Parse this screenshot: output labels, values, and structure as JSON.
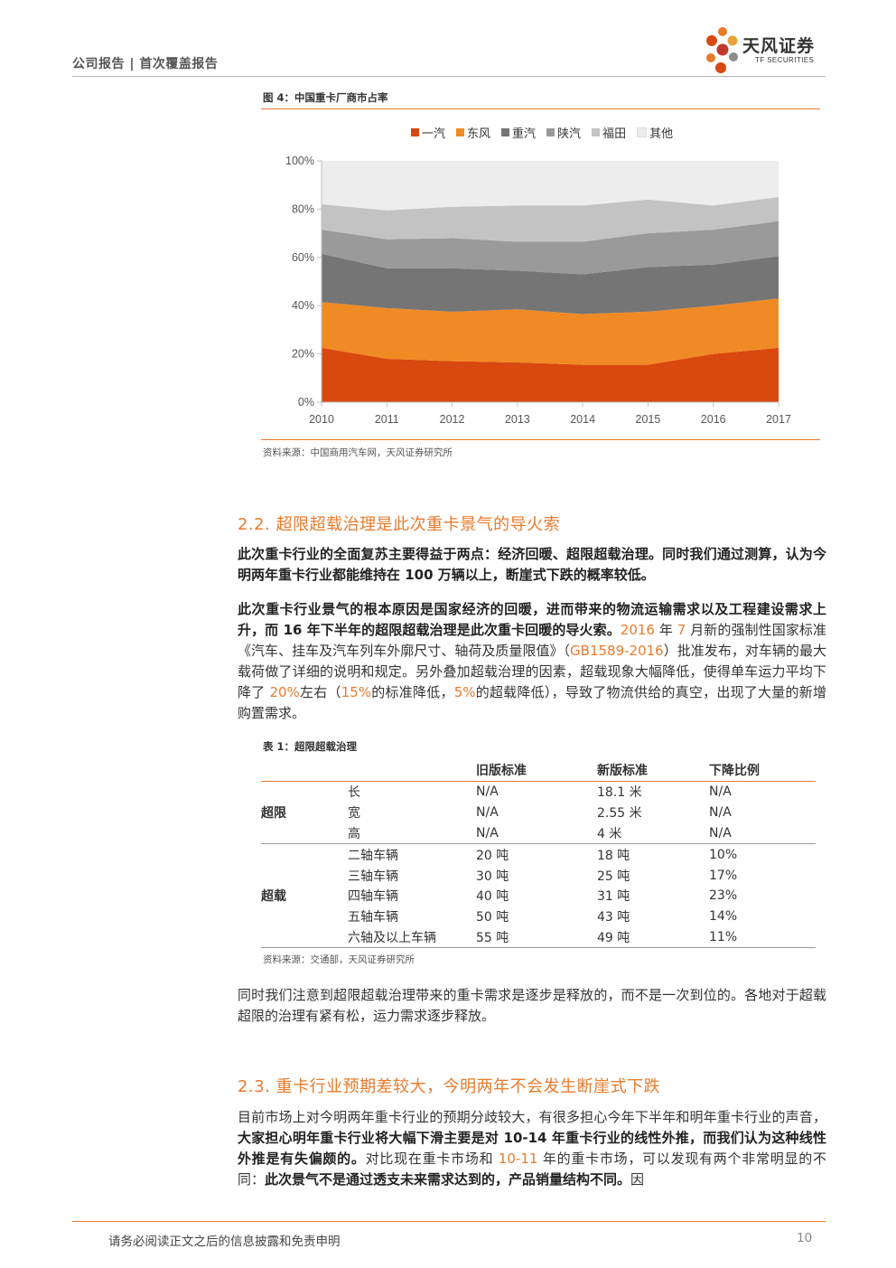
{
  "header": {
    "left_text": "公司报告 | 首次覆盖报告"
  },
  "logo": {
    "name": "天风证券",
    "sub": "TF SECURITIES"
  },
  "figure4": {
    "title": "图 4：中国重卡厂商市占率",
    "source": "资料来源：中国商用汽车网，天风证券研究所"
  },
  "chart_data": {
    "type": "area",
    "stacked": true,
    "x": [
      "2010",
      "2011",
      "2012",
      "2013",
      "2014",
      "2015",
      "2016",
      "2017"
    ],
    "ylim": [
      0,
      100
    ],
    "yticks": [
      "0%",
      "20%",
      "40%",
      "60%",
      "80%",
      "100%"
    ],
    "legend_position": "top",
    "series": [
      {
        "name": "一汽",
        "color": "#d9480f",
        "values": [
          22.5,
          18,
          17,
          16.5,
          15.5,
          15.5,
          20,
          22.5
        ]
      },
      {
        "name": "东风",
        "color": "#f08a24",
        "values": [
          19,
          21,
          20.5,
          22,
          21,
          22,
          20,
          20.5
        ]
      },
      {
        "name": "重汽",
        "color": "#757575",
        "values": [
          20,
          16.5,
          18,
          16,
          16.5,
          18.5,
          17,
          17.5
        ]
      },
      {
        "name": "陕汽",
        "color": "#9a9a9a",
        "values": [
          10,
          12,
          12.5,
          12,
          13.5,
          14,
          14.5,
          14.5
        ]
      },
      {
        "name": "福田",
        "color": "#c3c3c3",
        "values": [
          10.5,
          12,
          13,
          15,
          15,
          14,
          10,
          10
        ]
      },
      {
        "name": "其他",
        "color": "#ededed",
        "values": [
          18,
          20.5,
          19,
          18.5,
          18.5,
          16,
          18.5,
          15
        ]
      }
    ]
  },
  "section22": {
    "heading": "2.2. 超限超载治理是此次重卡景气的导火索",
    "p1": "此次重卡行业的全面复苏主要得益于两点：经济回暖、超限超载治理。同时我们通过测算，认为今明两年重卡行业都能维持在 100 万辆以上，断崖式下跌的概率较低。",
    "p2_bold": "此次重卡行业景气的根本原因是国家经济的回暖，进而带来的物流运输需求以及工程建设需求上升，而 16 年下半年的超限超载治理是此次重卡回暖的导火索。",
    "p2_a": "2016",
    "p2_b": " 年 ",
    "p2_c": "7",
    "p2_d": " 月新的强制性国家标准《汽车、挂车及汽车列车外廓尺寸、轴荷及质量限值》（",
    "p2_e": "GB1589-2016",
    "p2_f": "）批准发布，对车辆的最大载荷做了详细的说明和规定。另外叠加超载治理的因素，超载现象大幅降低，使得单车运力平均下降了 ",
    "p2_g": "20%",
    "p2_h": "左右（",
    "p2_i": "15%",
    "p2_j": "的标准降低，",
    "p2_k": "5%",
    "p2_l": "的超载降低），导致了物流供给的真空，出现了大量的新增购置需求。"
  },
  "table1": {
    "title": "表 1：超限超载治理",
    "headers": [
      "",
      "",
      "旧版标准",
      "新版标准",
      "下降比例"
    ],
    "group1_label": "超限",
    "group1_rows": [
      [
        "长",
        "N/A",
        "18.1 米",
        "N/A"
      ],
      [
        "宽",
        "N/A",
        "2.55 米",
        "N/A"
      ],
      [
        "高",
        "N/A",
        "4 米",
        "N/A"
      ]
    ],
    "group2_label": "超载",
    "group2_rows": [
      [
        "二轴车辆",
        "20 吨",
        "18 吨",
        "10%"
      ],
      [
        "三轴车辆",
        "30 吨",
        "25 吨",
        "17%"
      ],
      [
        "四轴车辆",
        "40 吨",
        "31 吨",
        "23%"
      ],
      [
        "五轴车辆",
        "50 吨",
        "43 吨",
        "14%"
      ],
      [
        "六轴及以上车辆",
        "55 吨",
        "49 吨",
        "11%"
      ]
    ],
    "source": "资料来源：交通部，天风证券研究所"
  },
  "para_after_table": "同时我们注意到超限超载治理带来的重卡需求是逐步是释放的，而不是一次到位的。各地对于超载超限的治理有紧有松，运力需求逐步释放。",
  "section23": {
    "heading": "2.3. 重卡行业预期差较大，今明两年不会发生断崖式下跌",
    "p_a": "目前市场上对今明两年重卡行业的预期分歧较大，有很多担心今年下半年和明年重卡行业的声音，",
    "p_b": "大家担心明年重卡行业将大幅下滑主要是对 10-14 年重卡行业的线性外推，而我们认为这种线性外推是有失偏颇的。",
    "p_c": "对比现在重卡市场和 ",
    "p_d": "10-11",
    "p_e": " 年的重卡市场，可以发现有两个非常明显的不同：",
    "p_f": "此次景气不是通过透支未来需求达到的，产品销量结构不同。",
    "p_g": "因"
  },
  "footer": {
    "disclaimer": "请务必阅读正文之后的信息披露和免责申明",
    "page": "10"
  }
}
